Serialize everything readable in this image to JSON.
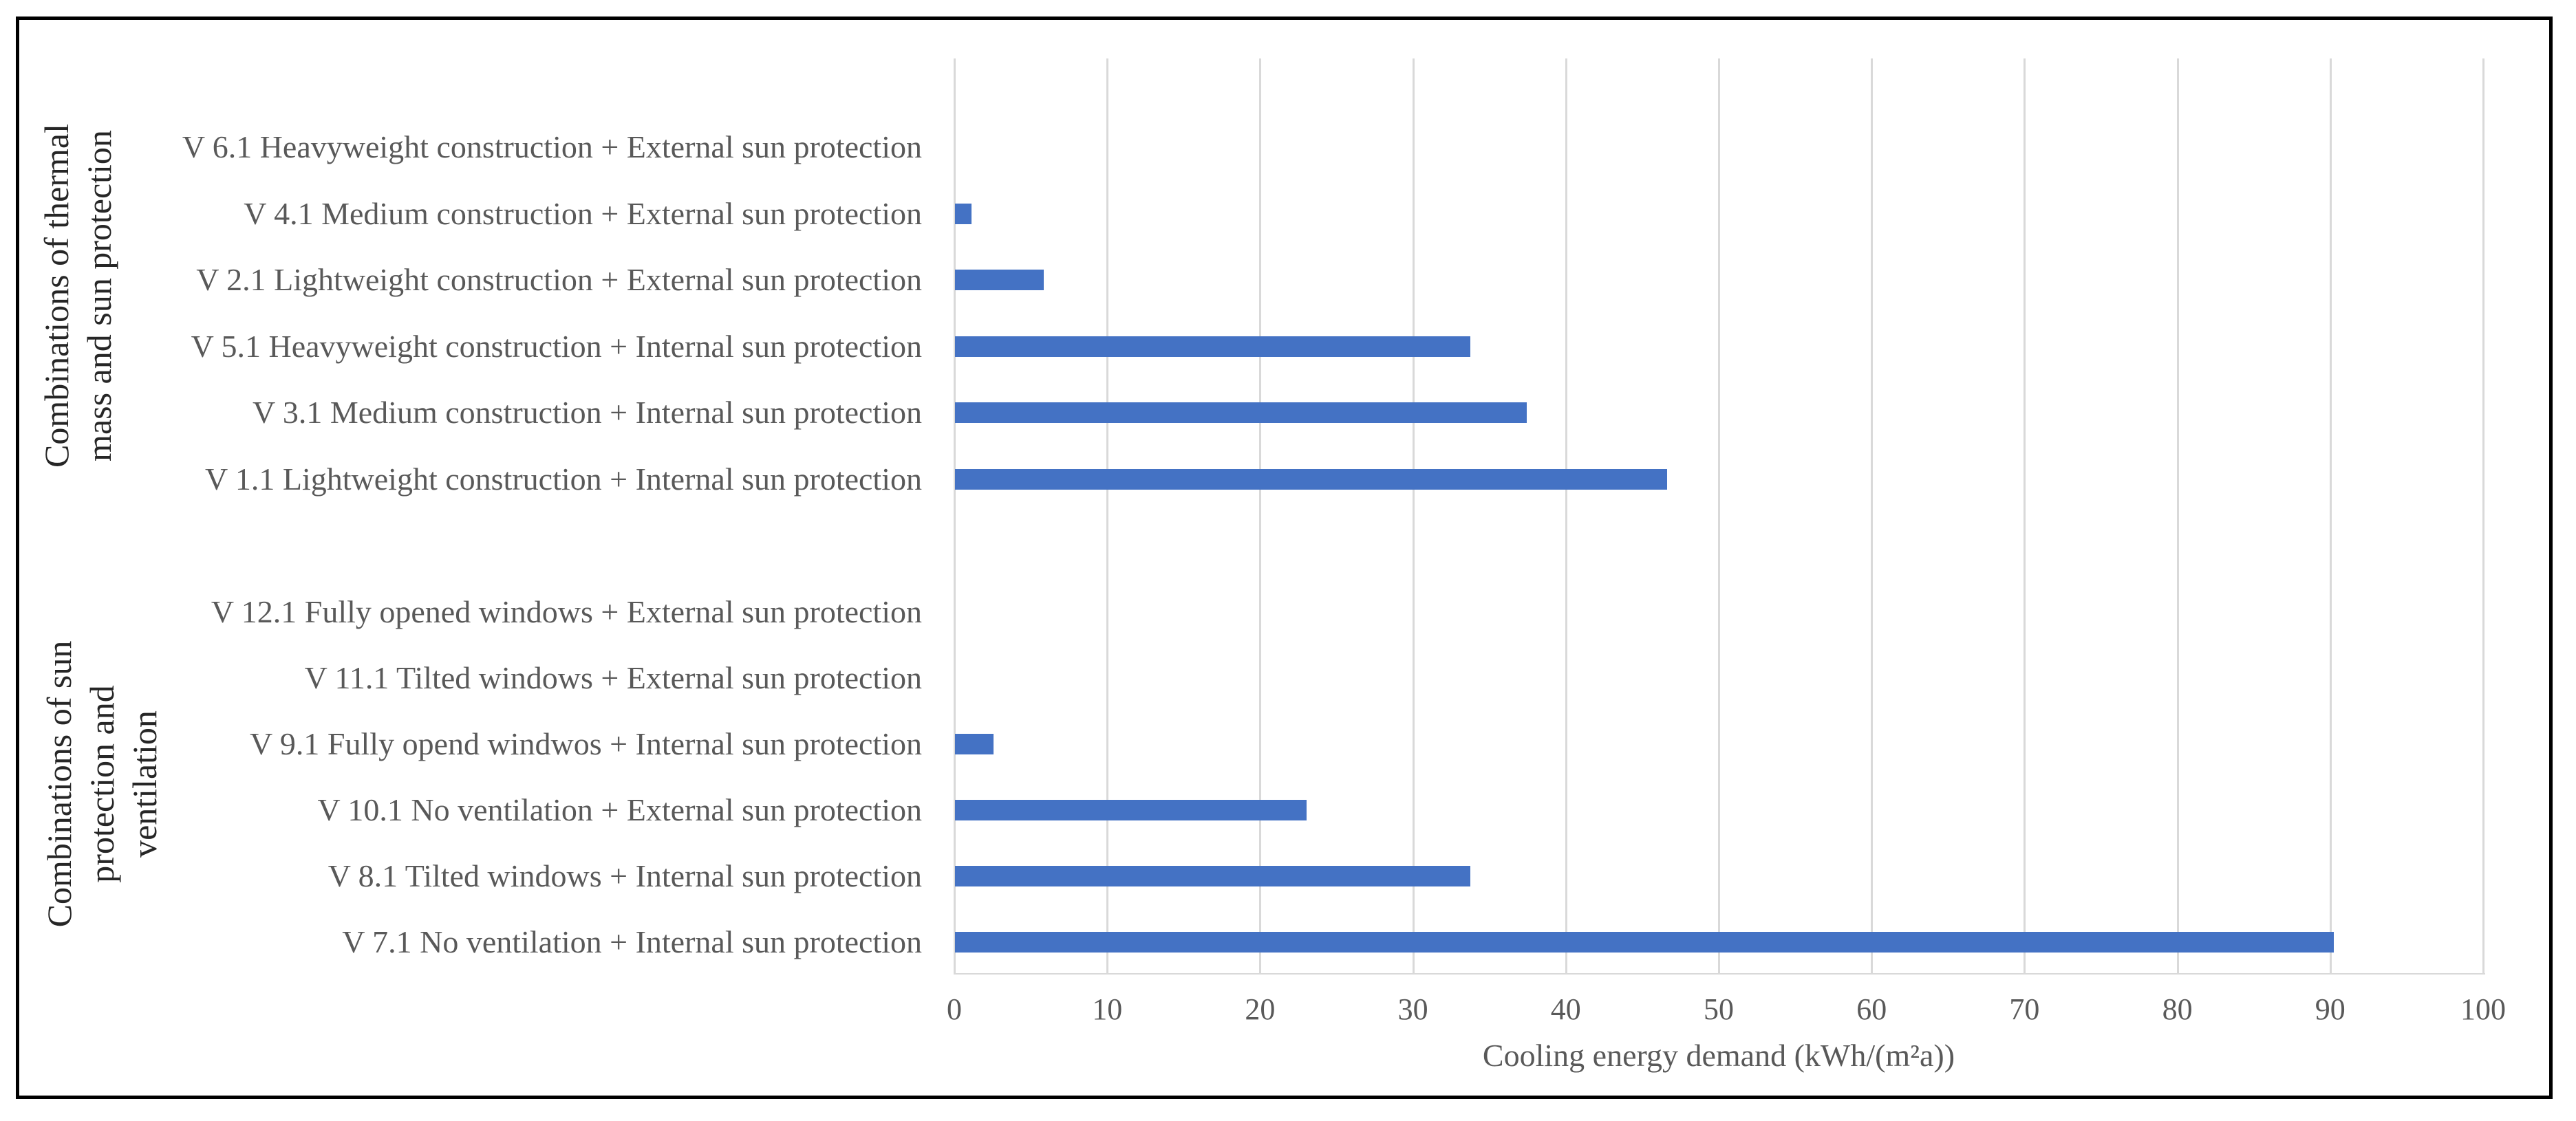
{
  "chart_data": {
    "type": "bar",
    "orientation": "horizontal",
    "title": "",
    "xlabel": "Cooling energy demand (kWh/(m²a))",
    "xlim": [
      0,
      100
    ],
    "x_ticks": [
      0,
      10,
      20,
      30,
      40,
      50,
      60,
      70,
      80,
      90,
      100
    ],
    "grid": "vertical-gridlines-every-10",
    "legend": "none",
    "bar_color": "#4472C4",
    "groups": [
      {
        "label": "Combinations of thermal mass and sun protection",
        "label_lines": [
          "Combinations of thermal",
          "mass and sun protection"
        ],
        "items": [
          {
            "label": "V 6.1 Heavyweight construction + External sun protection",
            "value": 0
          },
          {
            "label": "V 4.1 Medium construction + External sun protection",
            "value": 1.1
          },
          {
            "label": "V 2.1 Lightweight construction + External sun protection",
            "value": 5.8
          },
          {
            "label": "V 5.1 Heavyweight construction + Internal sun protection",
            "value": 33.7
          },
          {
            "label": "V 3.1 Medium construction + Internal sun protection",
            "value": 37.4
          },
          {
            "label": "V 1.1 Lightweight construction + Internal sun protection",
            "value": 46.6
          }
        ]
      },
      {
        "label": "Combinations of sun protection and ventilation",
        "label_lines": [
          "Combinations of sun",
          "protection and",
          "ventilation"
        ],
        "items": [
          {
            "label": "V 12.1 Fully opened windows + External sun protection",
            "value": 0
          },
          {
            "label": "V 11.1 Tilted windows + External sun protection",
            "value": 0
          },
          {
            "label": "V 9.1 Fully opend windwos + Internal sun protection",
            "value": 2.5
          },
          {
            "label": "V 10.1 No ventilation + External sun protection",
            "value": 23
          },
          {
            "label": "V 8.1 Tilted windows + Internal sun protection",
            "value": 33.7
          },
          {
            "label": "V 7.1 No ventilation + Internal sun protection",
            "value": 90.2
          }
        ]
      }
    ]
  },
  "colors": {
    "bar": "#4472C4",
    "gridline": "#d9d9d9",
    "tick_label": "#595959",
    "category_label": "#595959",
    "group_label": "#262626",
    "frame_border": "#000000"
  }
}
